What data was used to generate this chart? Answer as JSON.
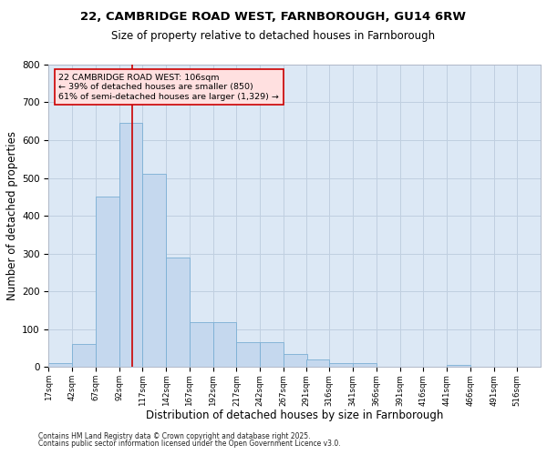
{
  "title_line1": "22, CAMBRIDGE ROAD WEST, FARNBOROUGH, GU14 6RW",
  "title_line2": "Size of property relative to detached houses in Farnborough",
  "xlabel": "Distribution of detached houses by size in Farnborough",
  "ylabel": "Number of detached properties",
  "footnote1": "Contains HM Land Registry data © Crown copyright and database right 2025.",
  "footnote2": "Contains public sector information licensed under the Open Government Licence v3.0.",
  "bar_edges": [
    17,
    42,
    67,
    92,
    117,
    142,
    167,
    192,
    217,
    242,
    267,
    291,
    316,
    341,
    366,
    391,
    416,
    441,
    466,
    491,
    516,
    541
  ],
  "bar_heights": [
    10,
    60,
    450,
    645,
    510,
    290,
    120,
    120,
    65,
    65,
    35,
    20,
    10,
    10,
    0,
    0,
    0,
    5,
    0,
    0,
    0,
    0
  ],
  "bar_color": "#c5d8ee",
  "bar_edge_color": "#7aafd4",
  "grid_color": "#c0cfe0",
  "bg_color": "#dce8f5",
  "property_size": 106,
  "red_line_color": "#cc0000",
  "annotation_line1": "22 CAMBRIDGE ROAD WEST: 106sqm",
  "annotation_line2": "← 39% of detached houses are smaller (850)",
  "annotation_line3": "61% of semi-detached houses are larger (1,329) →",
  "annotation_box_facecolor": "#ffe0e0",
  "annotation_box_edgecolor": "#cc0000",
  "tick_labels": [
    "17sqm",
    "42sqm",
    "67sqm",
    "92sqm",
    "117sqm",
    "142sqm",
    "167sqm",
    "192sqm",
    "217sqm",
    "242sqm",
    "267sqm",
    "291sqm",
    "316sqm",
    "341sqm",
    "366sqm",
    "391sqm",
    "416sqm",
    "441sqm",
    "466sqm",
    "491sqm",
    "516sqm"
  ],
  "ylim": [
    0,
    800
  ],
  "yticks": [
    0,
    100,
    200,
    300,
    400,
    500,
    600,
    700,
    800
  ]
}
